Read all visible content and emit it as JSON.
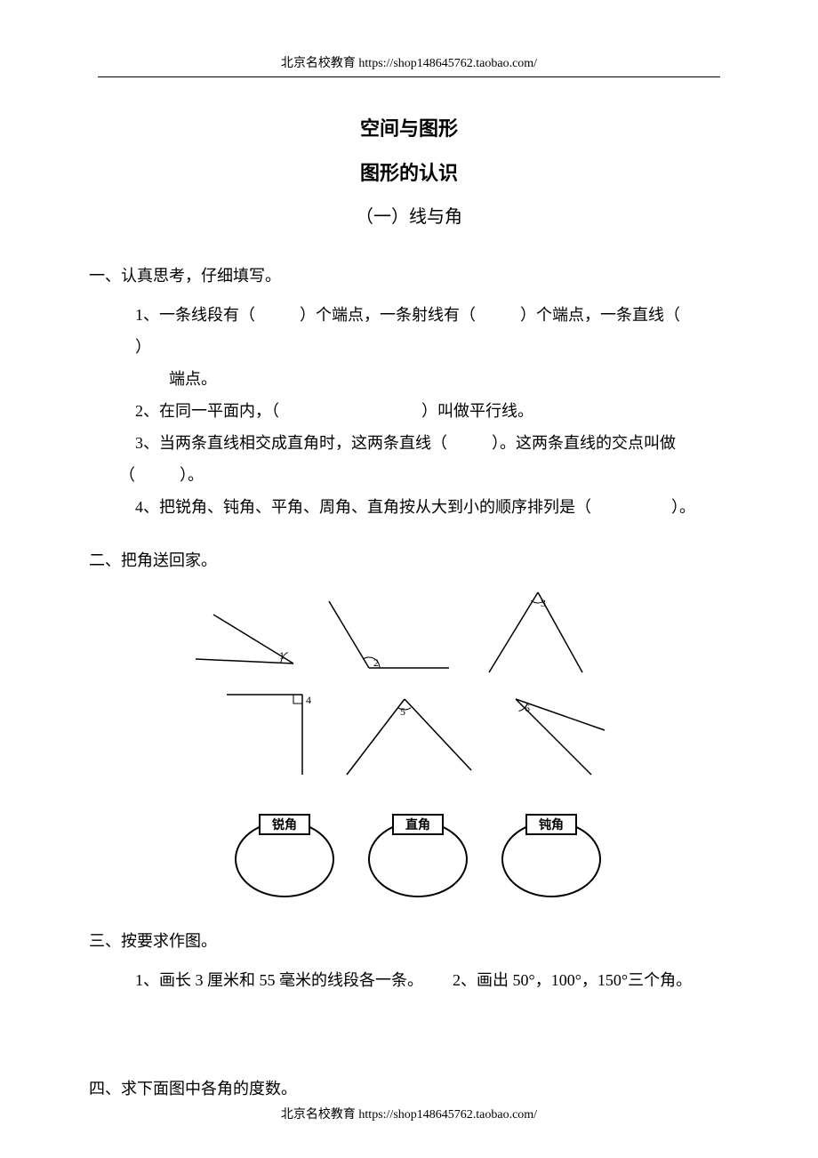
{
  "header": {
    "text": "北京名校教育 https://shop148645762.taobao.com/"
  },
  "titles": {
    "main": "空间与图形",
    "sub": "图形的认识",
    "section": "（一）线与角"
  },
  "s1": {
    "head": "一、认真思考，仔细填写。",
    "q1a": "1、一条线段有（",
    "q1b": "）个端点，一条射线有（",
    "q1c": "）个端点，一条直线（",
    "q1d": "）",
    "q1e": "端点。",
    "q2a": "2、在同一平面内，（",
    "q2b": "）叫做平行线。",
    "q3a": "3、当两条直线相交成直角时，这两条直线（",
    "q3b": "）。这两条直线的交点叫做",
    "q3c": "（",
    "q3d": "）。",
    "q4a": "4、把锐角、钝角、平角、周角、直角按从大到小的顺序排列是（",
    "q4b": "）。"
  },
  "s2": {
    "head": "二、把角送回家。",
    "figure": {
      "angles": [
        {
          "label": "1",
          "type": "acute-narrow"
        },
        {
          "label": "2",
          "type": "obtuse"
        },
        {
          "label": "3",
          "type": "acute"
        },
        {
          "label": "4",
          "type": "right"
        },
        {
          "label": "5",
          "type": "acute-wide"
        },
        {
          "label": "6",
          "type": "acute-narrow2"
        }
      ],
      "bins": [
        {
          "label": "锐角"
        },
        {
          "label": "直角"
        },
        {
          "label": "钝角"
        }
      ],
      "colors": {
        "stroke": "#000000",
        "binFill": "#ffffff",
        "binStroke": "#000000"
      },
      "lineWidth": 1.5,
      "binLineWidth": 2
    }
  },
  "s3": {
    "head": "三、按要求作图。",
    "q1": "1、画长 3 厘米和 55 毫米的线段各一条。",
    "q2": "2、画出 50°，100°，150°三个角。"
  },
  "s4": {
    "head": "四、求下面图中各角的度数。"
  },
  "footer": {
    "text": "北京名校教育 https://shop148645762.taobao.com/"
  }
}
